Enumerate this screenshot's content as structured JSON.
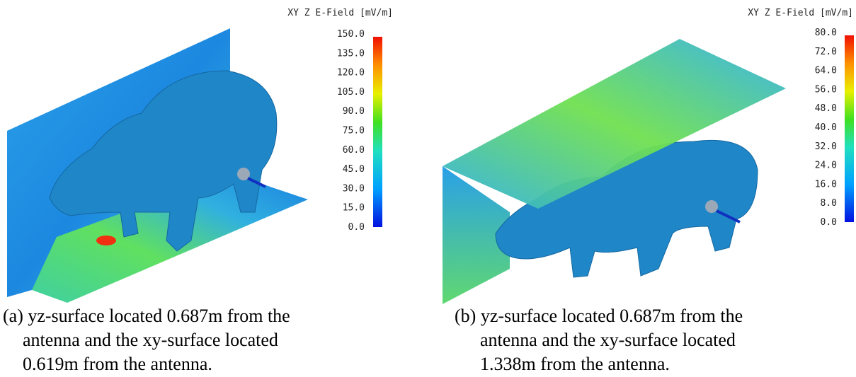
{
  "panels": [
    {
      "colorbar": {
        "title": "XY Z E-Field [mV/m]",
        "clim": [
          0,
          150
        ],
        "ticks": [
          {
            "value": 150,
            "label": "150.0"
          },
          {
            "value": 135,
            "label": "135.0"
          },
          {
            "value": 120,
            "label": "120.0"
          },
          {
            "value": 105,
            "label": "105.0"
          },
          {
            "value": 90,
            "label": "90.0"
          },
          {
            "value": 75,
            "label": "75.0"
          },
          {
            "value": 60,
            "label": "60.0"
          },
          {
            "value": 45,
            "label": "45.0"
          },
          {
            "value": 30,
            "label": "30.0"
          },
          {
            "value": 15,
            "label": "15.0"
          },
          {
            "value": 0,
            "label": "0.0"
          }
        ]
      },
      "caption": [
        "(a) yz-surface located 0.687m from the",
        "antenna and the xy-surface located",
        "0.619m from the antenna."
      ]
    },
    {
      "colorbar": {
        "title": "XY Z E-Field [mV/m]",
        "clim": [
          0,
          80
        ],
        "ticks": [
          {
            "value": 80,
            "label": "80.0"
          },
          {
            "value": 72,
            "label": "72.0"
          },
          {
            "value": 64,
            "label": "64.0"
          },
          {
            "value": 56,
            "label": "56.0"
          },
          {
            "value": 48,
            "label": "48.0"
          },
          {
            "value": 40,
            "label": "40.0"
          },
          {
            "value": 32,
            "label": "32.0"
          },
          {
            "value": 24,
            "label": "24.0"
          },
          {
            "value": 16,
            "label": "16.0"
          },
          {
            "value": 8,
            "label": "8.0"
          },
          {
            "value": 0,
            "label": "0.0"
          }
        ]
      },
      "caption": [
        "(b) yz-surface located 0.687m from the",
        "antenna and the xy-surface located",
        "1.338m from the antenna."
      ]
    }
  ]
}
